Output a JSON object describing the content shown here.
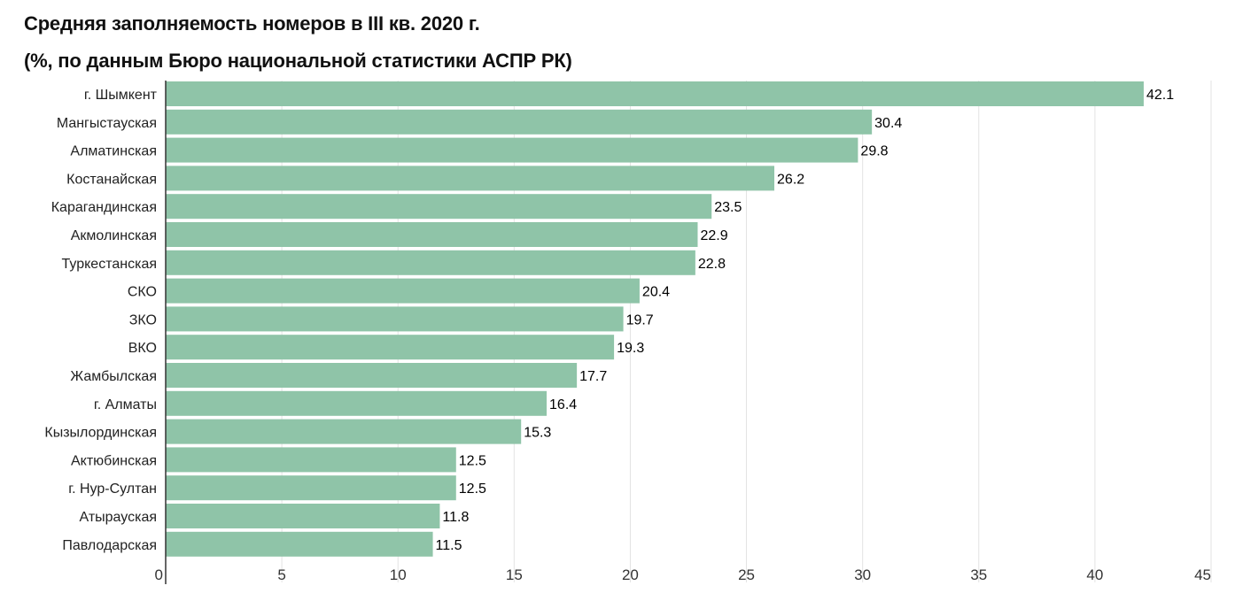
{
  "chart_data": {
    "type": "bar",
    "orientation": "horizontal",
    "title": "Средняя заполняемость номеров в III кв. 2020 г.",
    "subtitle": "(%, по данным Бюро национальной статистики АСПР РК)",
    "categories": [
      "г. Шымкент",
      "Мангыстауская",
      "Алматинская",
      "Костанайская",
      "Карагандинская",
      "Акмолинская",
      "Туркестанская",
      "СКО",
      "ЗКО",
      "ВКО",
      "Жамбылская",
      "г. Алматы",
      "Кызылординская",
      "Актюбинская",
      "г. Нур-Султан",
      "Атырауская",
      "Павлодарская"
    ],
    "values": [
      42.1,
      30.4,
      29.8,
      26.2,
      23.5,
      22.9,
      22.8,
      20.4,
      19.7,
      19.3,
      17.7,
      16.4,
      15.3,
      12.5,
      12.5,
      11.8,
      11.5
    ],
    "value_labels": [
      "42.1",
      "30.4",
      "29.8",
      "26.2",
      "23.5",
      "22.9",
      "22.8",
      "20.4",
      "19.7",
      "19.3",
      "17.7",
      "16.4",
      "15.3",
      "12.5",
      "12.5",
      "11.8",
      "11.5"
    ],
    "xlim": [
      0,
      45
    ],
    "xticks": [
      0,
      5,
      10,
      15,
      20,
      25,
      30,
      35,
      40,
      45
    ],
    "xtick_labels": [
      "0",
      "5",
      "10",
      "15",
      "20",
      "25",
      "30",
      "35",
      "40",
      "45"
    ],
    "xlabel": "",
    "ylabel": "",
    "grid": true,
    "legend": false,
    "bar_color": "#8fc4a8",
    "grid_color": "#e3e3e3",
    "axis_color": "#333333"
  }
}
